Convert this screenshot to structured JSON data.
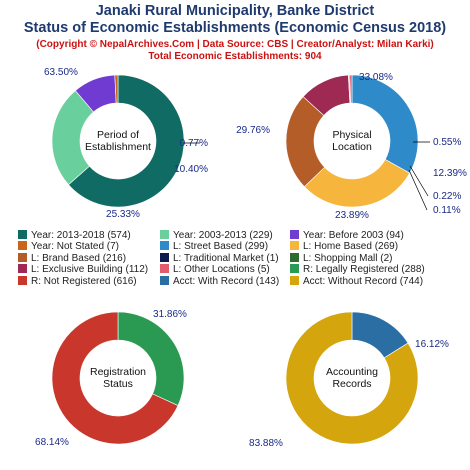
{
  "header": {
    "title_line1": "Janaki Rural Municipality, Banke District",
    "title_line2": "Status of Economic Establishments (Economic Census 2018)",
    "credit": "(Copyright © NepalArchives.Com | Data Source: CBS | Creator/Analyst: Milan Karki)",
    "total": "Total Economic Establishments: 904"
  },
  "chart_data": [
    {
      "type": "pie",
      "center_label": [
        "Period of",
        "Establishment"
      ],
      "slices": [
        {
          "label": "Year: 2013-2018 (574)",
          "value": 574,
          "pct": "63.50%",
          "color": "#0f6b63"
        },
        {
          "label": "Year: 2003-2013 (229)",
          "value": 229,
          "pct": "25.33%",
          "color": "#69d09d"
        },
        {
          "label": "Year: Before 2003 (94)",
          "value": 94,
          "pct": "10.40%",
          "color": "#6f3bd1"
        },
        {
          "label": "Year: Not Stated (7)",
          "value": 7,
          "pct": "0.77%",
          "color": "#c8651b"
        }
      ]
    },
    {
      "type": "pie",
      "center_label": [
        "Physical",
        "Location"
      ],
      "slices": [
        {
          "label": "L: Street Based (299)",
          "value": 299,
          "pct": "33.08%",
          "color": "#2f8ac9"
        },
        {
          "label": "L: Home Based (269)",
          "value": 269,
          "pct": "29.76%",
          "color": "#f6b53c"
        },
        {
          "label": "L: Brand Based (216)",
          "value": 216,
          "pct": "23.89%",
          "color": "#b45d28"
        },
        {
          "label": "L: Exclusive Building (112)",
          "value": 112,
          "pct": "12.39%",
          "color": "#9e2a54"
        },
        {
          "label": "L: Traditional Market (1)",
          "value": 1,
          "pct": "0.11%",
          "color": "#0d1a4d"
        },
        {
          "label": "L: Shopping Mall (2)",
          "value": 2,
          "pct": "0.22%",
          "color": "#2e6b2e"
        },
        {
          "label": "L: Other Locations (5)",
          "value": 5,
          "pct": "0.55%",
          "color": "#e25c6c"
        }
      ]
    },
    {
      "type": "pie",
      "center_label": [
        "Registration",
        "Status"
      ],
      "slices": [
        {
          "label": "R: Legally Registered (288)",
          "value": 288,
          "pct": "31.86%",
          "color": "#2a9a52"
        },
        {
          "label": "R: Not Registered (616)",
          "value": 616,
          "pct": "68.14%",
          "color": "#c9372c"
        }
      ]
    },
    {
      "type": "pie",
      "center_label": [
        "Accounting",
        "Records"
      ],
      "slices": [
        {
          "label": "Acct: With Record (143)",
          "value": 143,
          "pct": "16.12%",
          "color": "#2b6ea3"
        },
        {
          "label": "Acct: Without Record (744)",
          "value": 744,
          "pct": "83.88%",
          "color": "#d4a50c"
        }
      ]
    }
  ],
  "legend": [
    {
      "label": "Year: 2013-2018 (574)",
      "color": "#0f6b63"
    },
    {
      "label": "Year: 2003-2013 (229)",
      "color": "#69d09d"
    },
    {
      "label": "Year: Before 2003 (94)",
      "color": "#6f3bd1"
    },
    {
      "label": "Year: Not Stated (7)",
      "color": "#c8651b"
    },
    {
      "label": "L: Street Based (299)",
      "color": "#2f8ac9"
    },
    {
      "label": "L: Home Based (269)",
      "color": "#f6b53c"
    },
    {
      "label": "L: Brand Based (216)",
      "color": "#b45d28"
    },
    {
      "label": "L: Traditional Market (1)",
      "color": "#0d1a4d"
    },
    {
      "label": "L: Shopping Mall (2)",
      "color": "#2e6b2e"
    },
    {
      "label": "L: Exclusive Building (112)",
      "color": "#9e2a54"
    },
    {
      "label": "L: Other Locations (5)",
      "color": "#e25c6c"
    },
    {
      "label": "R: Legally Registered (288)",
      "color": "#2a9a52"
    },
    {
      "label": "R: Not Registered (616)",
      "color": "#c9372c"
    },
    {
      "label": "Acct: With Record (143)",
      "color": "#2b6ea3"
    },
    {
      "label": "Acct: Without Record (744)",
      "color": "#d4a50c"
    }
  ]
}
